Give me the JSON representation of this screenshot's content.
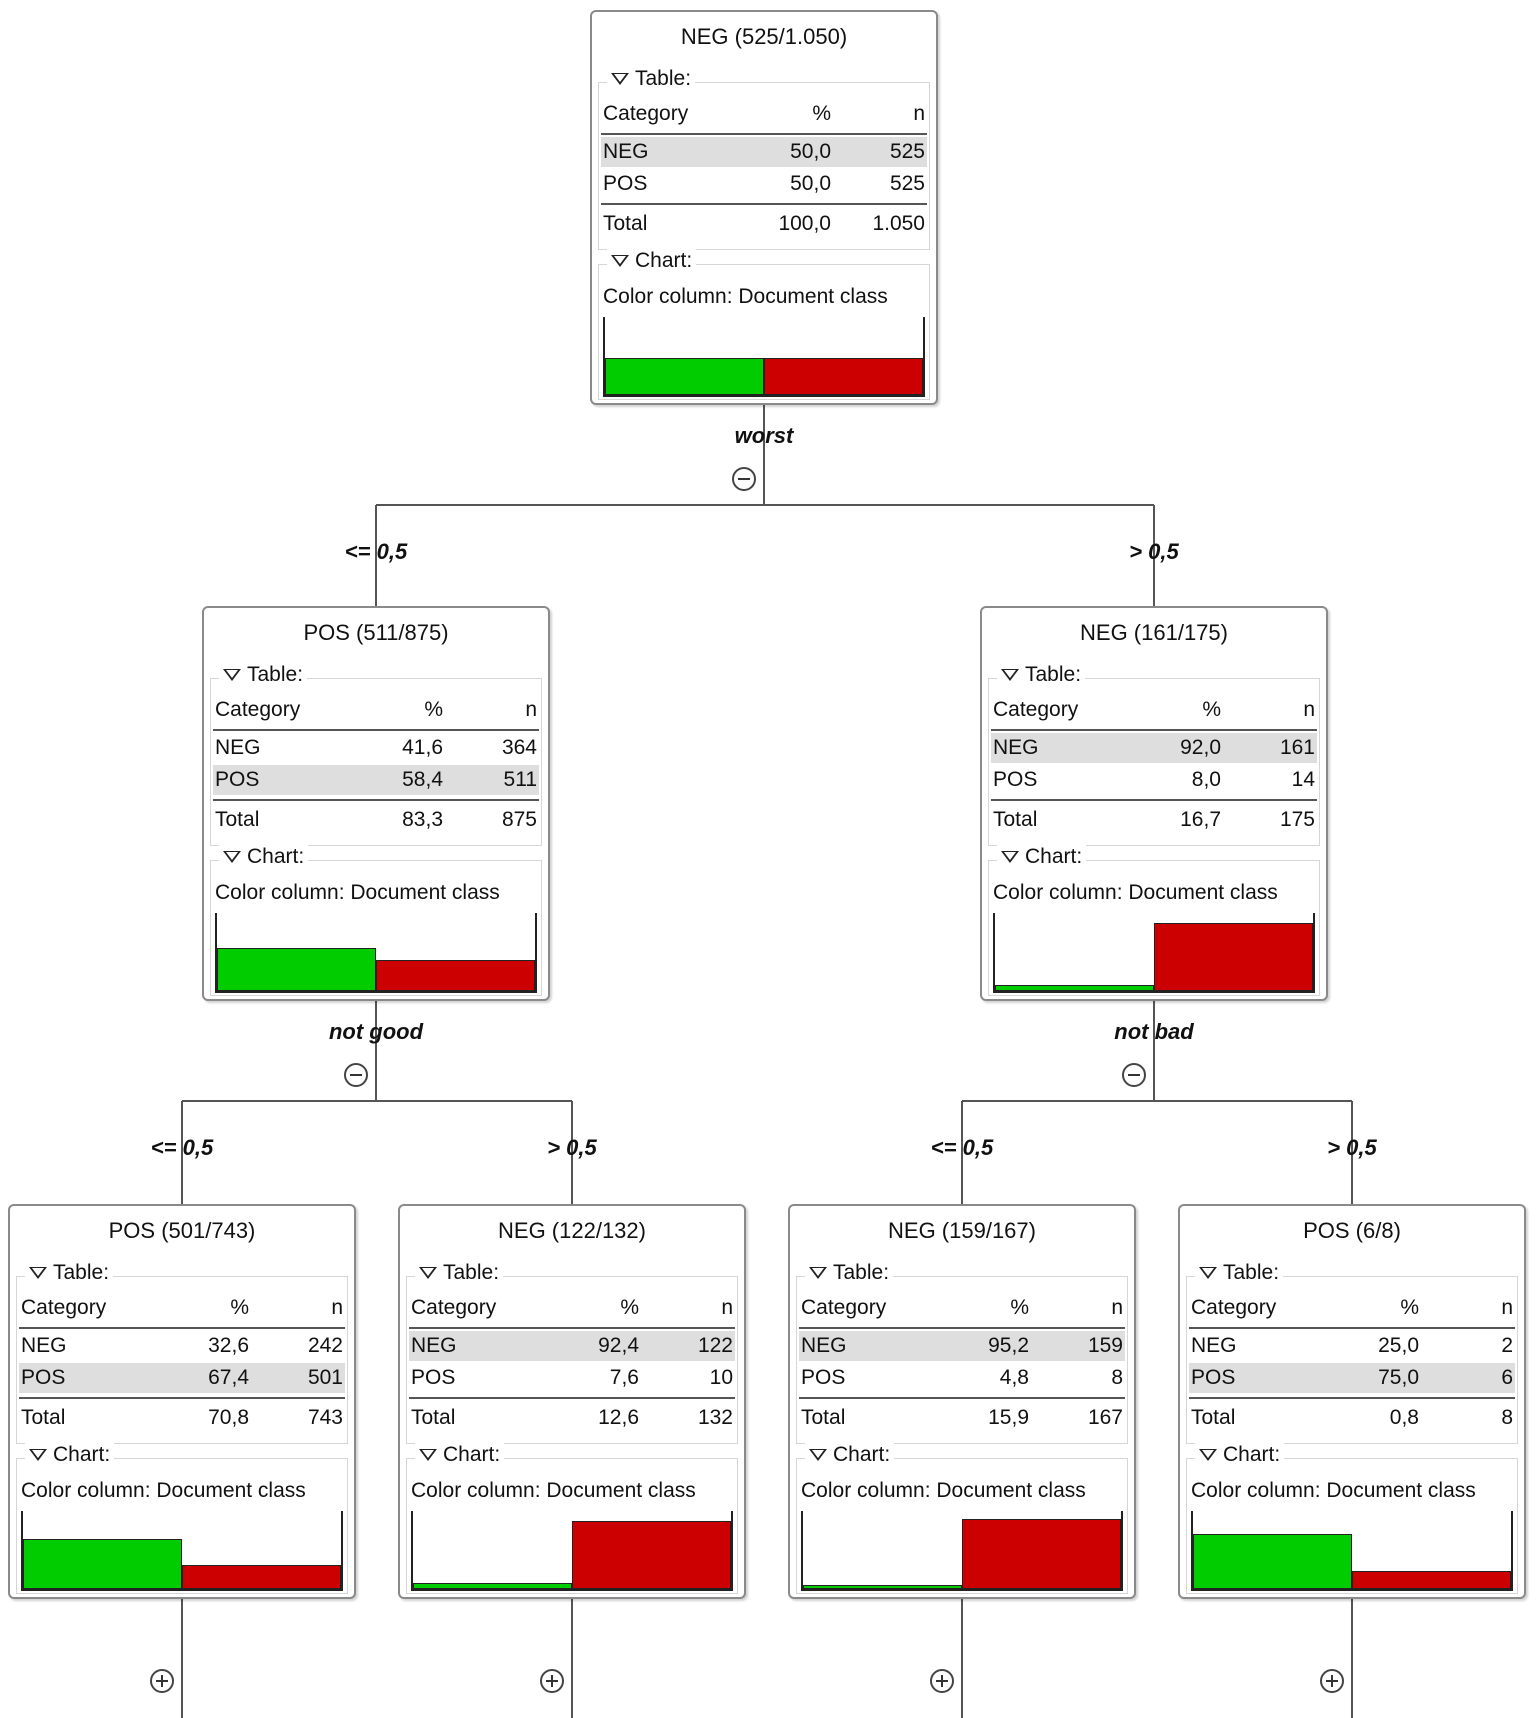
{
  "colors": {
    "pos_bar": "#00cc00",
    "neg_bar": "#cc0000"
  },
  "labels": {
    "table": "Table:",
    "chart": "Chart:",
    "category": "Category",
    "percent": "%",
    "n": "n",
    "total": "Total"
  },
  "nodes": [
    {
      "title": "NEG (525/1.050)",
      "color_column": "Color column: Document class",
      "rows": [
        {
          "cat": "NEG",
          "pct": "50,0",
          "n": "525",
          "hl": true
        },
        {
          "cat": "POS",
          "pct": "50,0",
          "n": "525",
          "hl": false
        }
      ],
      "total": {
        "pct": "100,0",
        "n": "1.050"
      },
      "bars": {
        "pos": 0.5,
        "neg": 0.5
      },
      "split": {
        "label": "worst",
        "expanded": true
      }
    },
    {
      "title": "POS (511/875)",
      "color_column": "Color column: Document class",
      "rows": [
        {
          "cat": "NEG",
          "pct": "41,6",
          "n": "364",
          "hl": false
        },
        {
          "cat": "POS",
          "pct": "58,4",
          "n": "511",
          "hl": true
        }
      ],
      "total": {
        "pct": "83,3",
        "n": "875"
      },
      "bars": {
        "pos": 0.584,
        "neg": 0.416
      },
      "edge": "<= 0,5",
      "split": {
        "label": "not good",
        "expanded": true
      }
    },
    {
      "title": "NEG (161/175)",
      "color_column": "Color column: Document class",
      "rows": [
        {
          "cat": "NEG",
          "pct": "92,0",
          "n": "161",
          "hl": true
        },
        {
          "cat": "POS",
          "pct": "8,0",
          "n": "14",
          "hl": false
        }
      ],
      "total": {
        "pct": "16,7",
        "n": "175"
      },
      "bars": {
        "pos": 0.08,
        "neg": 0.92
      },
      "edge": "> 0,5",
      "split": {
        "label": "not bad",
        "expanded": true
      }
    },
    {
      "title": "POS (501/743)",
      "color_column": "Color column: Document class",
      "rows": [
        {
          "cat": "NEG",
          "pct": "32,6",
          "n": "242",
          "hl": false
        },
        {
          "cat": "POS",
          "pct": "67,4",
          "n": "501",
          "hl": true
        }
      ],
      "total": {
        "pct": "70,8",
        "n": "743"
      },
      "bars": {
        "pos": 0.674,
        "neg": 0.326
      },
      "edge": "<= 0,5",
      "split": {
        "label": "",
        "expanded": false
      }
    },
    {
      "title": "NEG (122/132)",
      "color_column": "Color column: Document class",
      "rows": [
        {
          "cat": "NEG",
          "pct": "92,4",
          "n": "122",
          "hl": true
        },
        {
          "cat": "POS",
          "pct": "7,6",
          "n": "10",
          "hl": false
        }
      ],
      "total": {
        "pct": "12,6",
        "n": "132"
      },
      "bars": {
        "pos": 0.076,
        "neg": 0.924
      },
      "edge": "> 0,5",
      "split": {
        "label": "",
        "expanded": false
      }
    },
    {
      "title": "NEG (159/167)",
      "color_column": "Color column: Document class",
      "rows": [
        {
          "cat": "NEG",
          "pct": "95,2",
          "n": "159",
          "hl": true
        },
        {
          "cat": "POS",
          "pct": "4,8",
          "n": "8",
          "hl": false
        }
      ],
      "total": {
        "pct": "15,9",
        "n": "167"
      },
      "bars": {
        "pos": 0.048,
        "neg": 0.952
      },
      "edge": "<= 0,5",
      "split": {
        "label": "",
        "expanded": false
      }
    },
    {
      "title": "POS (6/8)",
      "color_column": "Color column: Document class",
      "rows": [
        {
          "cat": "NEG",
          "pct": "25,0",
          "n": "2",
          "hl": false
        },
        {
          "cat": "POS",
          "pct": "75,0",
          "n": "6",
          "hl": true
        }
      ],
      "total": {
        "pct": "0,8",
        "n": "8"
      },
      "bars": {
        "pos": 0.75,
        "neg": 0.25
      },
      "edge": "> 0,5",
      "split": {
        "label": "",
        "expanded": false
      }
    }
  ]
}
